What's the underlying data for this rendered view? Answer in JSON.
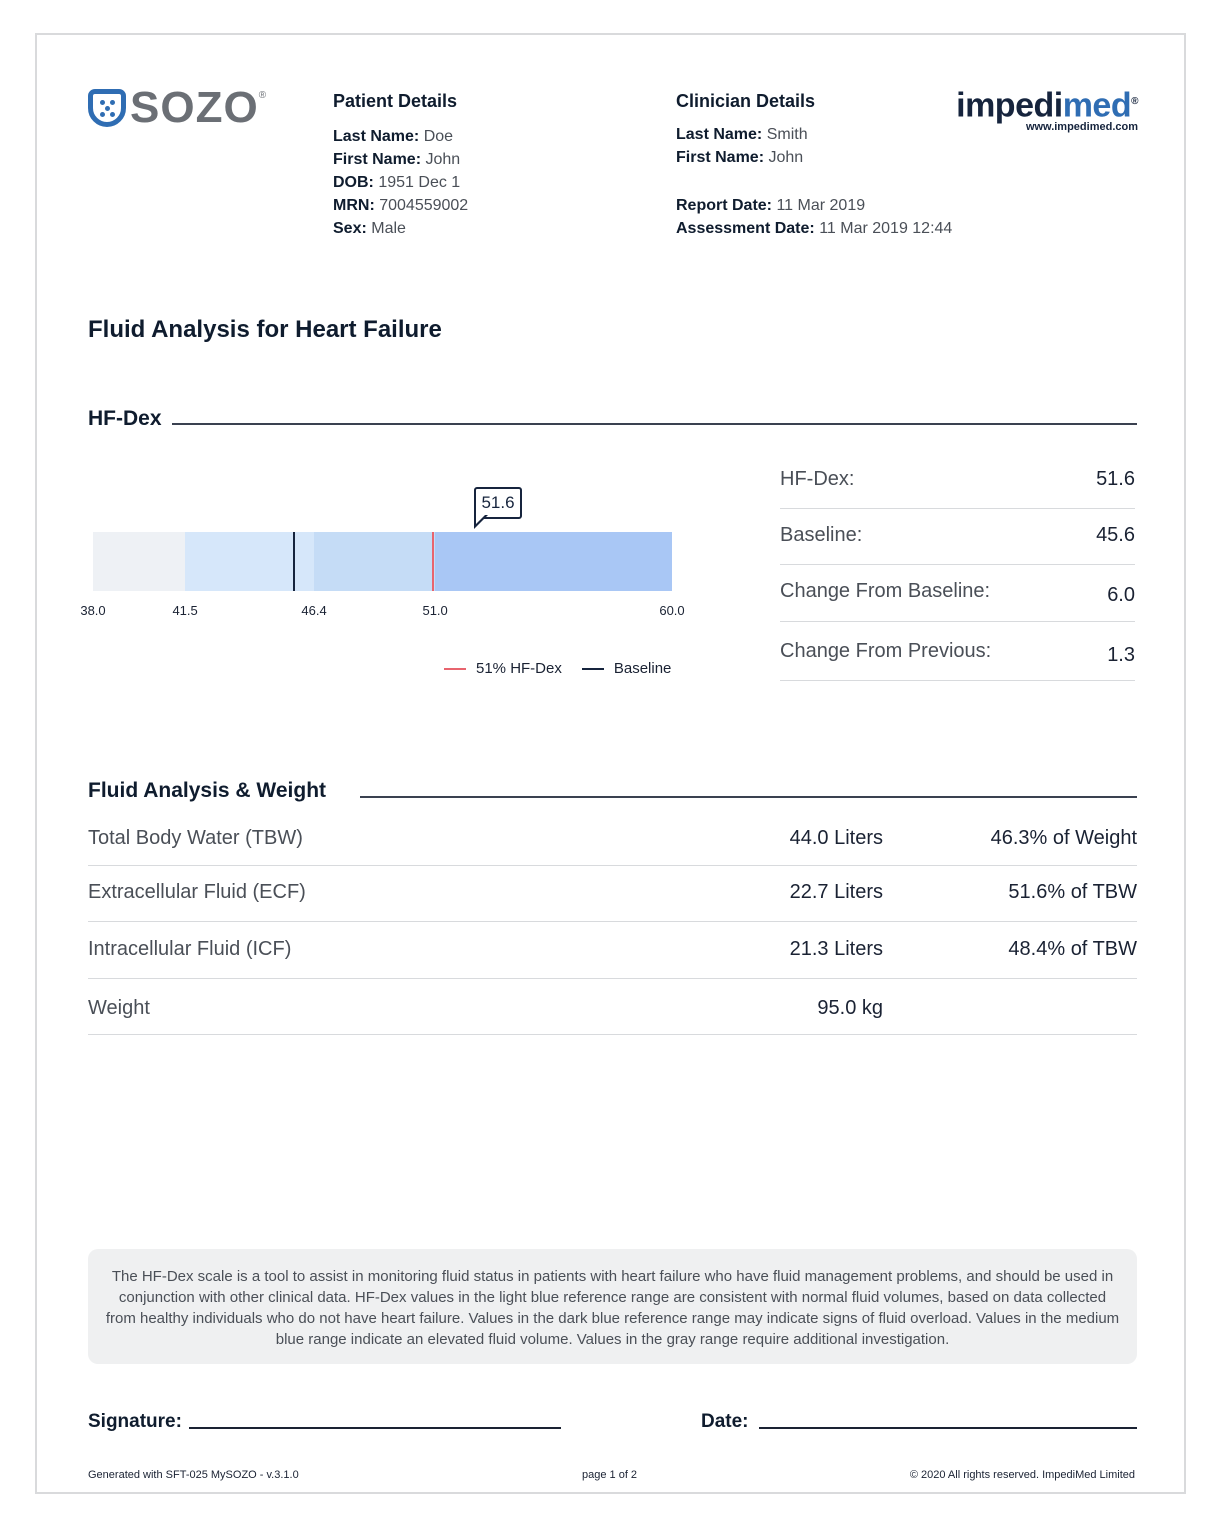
{
  "logos": {
    "left_brand": "SOZO",
    "right_brand_part1": "impedi",
    "right_brand_part2": "med",
    "right_brand_url": "www.impedimed.com"
  },
  "patient": {
    "heading": "Patient Details",
    "last_name_label": "Last Name:",
    "last_name": "Doe",
    "first_name_label": "First Name:",
    "first_name": "John",
    "dob_label": "DOB:",
    "dob": "1951 Dec 1",
    "mrn_label": "MRN:",
    "mrn": "7004559002",
    "sex_label": "Sex:",
    "sex": "Male"
  },
  "clinician": {
    "heading": "Clinician Details",
    "last_name_label": "Last Name:",
    "last_name": "Smith",
    "first_name_label": "First Name:",
    "first_name": "John",
    "report_date_label": "Report Date:",
    "report_date": "11 Mar 2019",
    "assessment_date_label": "Assessment Date:",
    "assessment_date": "11 Mar 2019 12:44"
  },
  "title": "Fluid Analysis for Heart Failure",
  "hfdex": {
    "section_title": "HF-Dex",
    "marker_label": "51.6",
    "ticks": [
      "38.0",
      "41.5",
      "46.4",
      "51.0",
      "60.0"
    ],
    "scale_min": 38.0,
    "scale_max": 60.0,
    "baseline_value": 45.6,
    "threshold_value": 51.0,
    "current_value": 51.6,
    "legend": [
      {
        "label": "51% HF-Dex",
        "color": "#e8646e"
      },
      {
        "label": "Baseline",
        "color": "#16243d"
      }
    ],
    "range_colors": [
      "#eef1f5",
      "#d6e7fa",
      "#c5dcf6",
      "#a9c7f5"
    ],
    "stats": [
      {
        "label": "HF-Dex:",
        "value": "51.6"
      },
      {
        "label": "Baseline:",
        "value": "45.6"
      },
      {
        "label": "Change From Baseline:",
        "value": "6.0"
      },
      {
        "label": "Change From Previous:",
        "value": "1.3"
      }
    ]
  },
  "fluid": {
    "section_title": "Fluid Analysis & Weight",
    "rows": [
      {
        "label": "Total Body Water (TBW)",
        "value": "44.0 Liters",
        "pct": "46.3% of Weight"
      },
      {
        "label": "Extracellular Fluid (ECF)",
        "value": "22.7 Liters",
        "pct": "51.6% of TBW"
      },
      {
        "label": "Intracellular Fluid (ICF)",
        "value": "21.3 Liters",
        "pct": "48.4% of TBW"
      },
      {
        "label": "Weight",
        "value": "95.0 kg",
        "pct": ""
      }
    ]
  },
  "note": "The HF-Dex scale is a tool to assist in monitoring fluid status in patients with heart failure who have fluid management problems, and should be used in conjunction with other clinical data. HF-Dex values in the light blue reference range are consistent with normal fluid volumes, based on data collected from healthy individuals who do not have heart failure. Values in the dark blue reference range may indicate signs of fluid overload. Values in the medium blue range indicate an elevated fluid volume. Values in the gray range require additional investigation.",
  "signature": {
    "signature_label": "Signature:",
    "date_label": "Date:"
  },
  "footer": {
    "left": "Generated with SFT-025 MySOZO - v.3.1.0",
    "center": "page 1 of 2",
    "right": "© 2020 All rights reserved. ImpediMed Limited"
  }
}
